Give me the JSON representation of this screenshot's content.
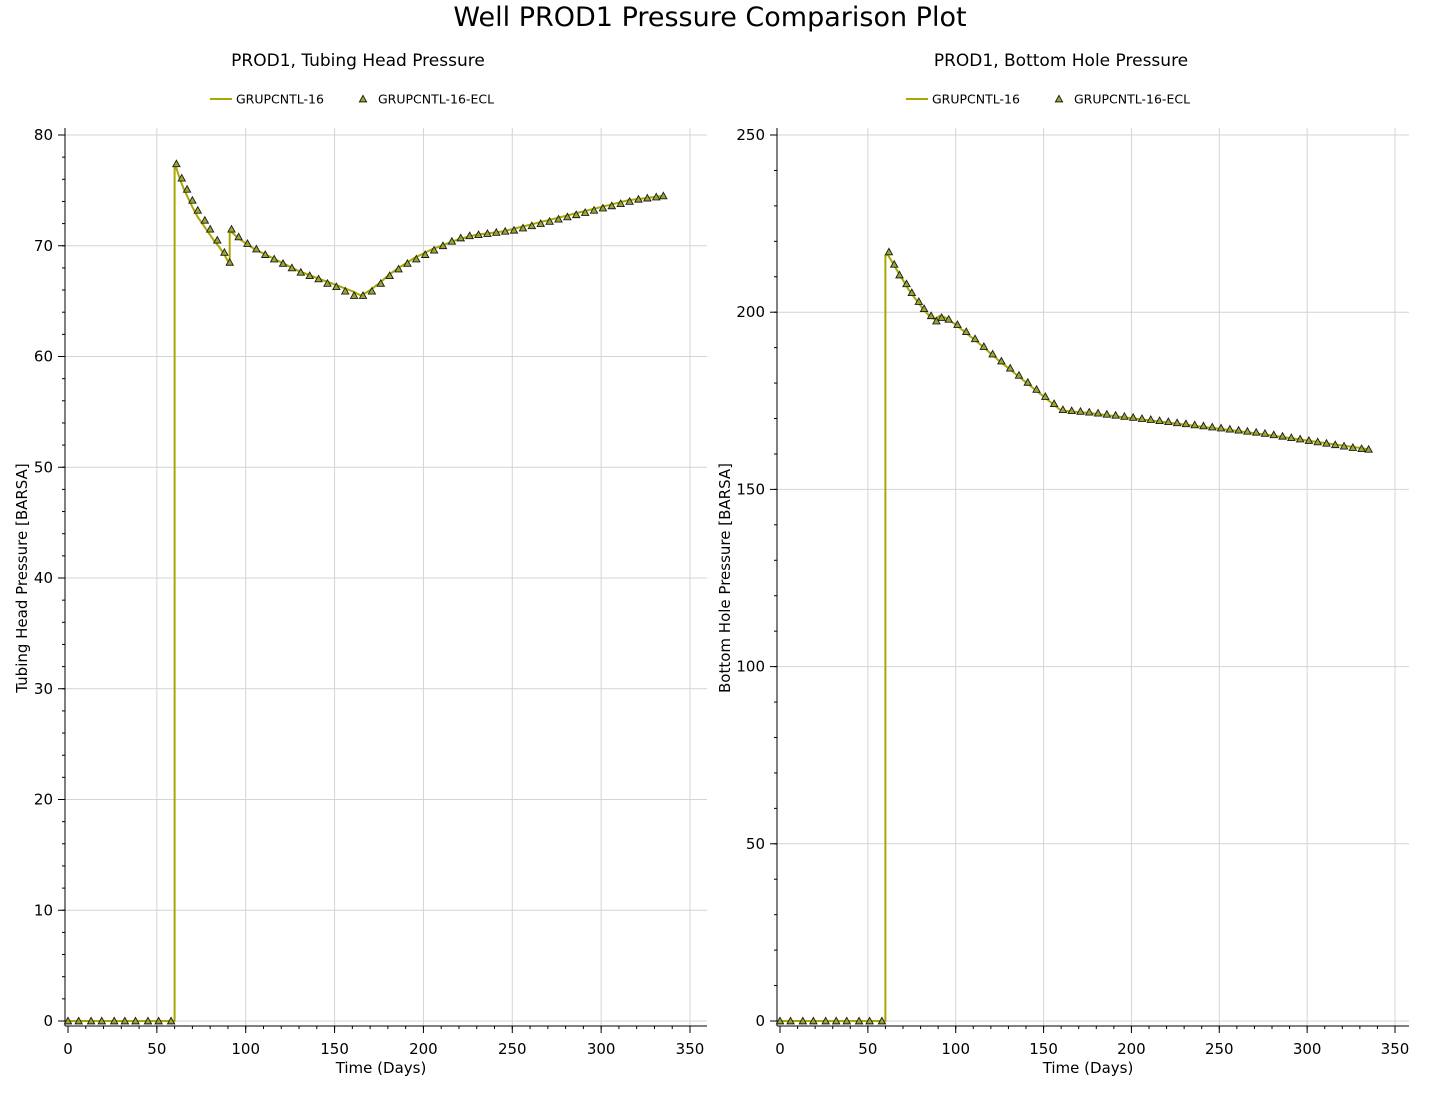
{
  "page": {
    "title": "Well PROD1 Pressure Comparison Plot"
  },
  "colors": {
    "line": "#a8a800",
    "marker_fill": "#9aa830",
    "marker_stroke": "#1a1a1a",
    "grid": "#d4d4d4"
  },
  "chart_data": [
    {
      "type": "line",
      "title": "PROD1, Tubing Head Pressure",
      "xlabel": "Time (Days)",
      "ylabel": "Tubing Head Pressure [BARSA]",
      "xlim": [
        0,
        350
      ],
      "ylim": [
        0,
        80
      ],
      "xticks": [
        0,
        50,
        100,
        150,
        200,
        250,
        300,
        350
      ],
      "yticks": [
        0,
        10,
        20,
        30,
        40,
        50,
        60,
        70,
        80
      ],
      "grid": true,
      "legend": "top-center",
      "series": [
        {
          "name": "GRUPCNTL-16",
          "style": "line",
          "x": [
            0,
            60,
            60,
            61,
            63,
            65,
            67,
            70,
            73,
            76,
            79,
            82,
            85,
            88,
            90,
            91,
            91,
            93,
            95,
            100,
            105,
            110,
            115,
            120,
            125,
            130,
            135,
            140,
            145,
            150,
            155,
            160,
            165,
            170,
            175,
            180,
            185,
            190,
            195,
            200,
            205,
            210,
            215,
            220,
            225,
            230,
            235,
            240,
            245,
            250,
            255,
            260,
            265,
            270,
            275,
            280,
            285,
            290,
            295,
            300,
            305,
            310,
            315,
            320,
            325,
            330,
            335
          ],
          "y": [
            0,
            0,
            77.3,
            77.0,
            76.0,
            75.2,
            74.5,
            73.5,
            72.6,
            71.9,
            71.2,
            70.5,
            69.9,
            69.2,
            68.6,
            68.5,
            71.4,
            71.1,
            70.8,
            70.2,
            69.7,
            69.3,
            68.9,
            68.5,
            68.1,
            67.7,
            67.4,
            67.1,
            66.8,
            66.5,
            66.2,
            65.9,
            65.5,
            66.0,
            66.6,
            67.3,
            67.9,
            68.4,
            68.9,
            69.3,
            69.7,
            70.0,
            70.3,
            70.6,
            70.8,
            71.0,
            71.1,
            71.2,
            71.3,
            71.5,
            71.7,
            71.9,
            72.1,
            72.3,
            72.5,
            72.7,
            72.9,
            73.1,
            73.3,
            73.5,
            73.7,
            73.9,
            74.1,
            74.2,
            74.3,
            74.4,
            74.5
          ]
        },
        {
          "name": "GRUPCNTL-16-ECL",
          "style": "marker",
          "x": [
            0,
            6,
            13,
            19,
            26,
            32,
            38,
            45,
            51,
            58,
            61,
            64,
            67,
            70,
            73,
            77,
            80,
            84,
            88,
            91,
            92,
            96,
            101,
            106,
            111,
            116,
            121,
            126,
            131,
            136,
            141,
            146,
            151,
            156,
            161,
            166,
            171,
            176,
            181,
            186,
            191,
            196,
            201,
            206,
            211,
            216,
            221,
            226,
            231,
            236,
            241,
            246,
            251,
            256,
            261,
            266,
            271,
            276,
            281,
            286,
            291,
            296,
            301,
            306,
            311,
            316,
            321,
            326,
            331,
            335
          ],
          "y": [
            0,
            0,
            0,
            0,
            0,
            0,
            0,
            0,
            0,
            0,
            77.4,
            76.1,
            75.1,
            74.1,
            73.2,
            72.3,
            71.5,
            70.5,
            69.4,
            68.5,
            71.5,
            70.8,
            70.2,
            69.7,
            69.2,
            68.8,
            68.4,
            68.0,
            67.6,
            67.3,
            67.0,
            66.6,
            66.3,
            65.9,
            65.5,
            65.5,
            65.9,
            66.6,
            67.3,
            67.9,
            68.4,
            68.8,
            69.2,
            69.6,
            70.0,
            70.4,
            70.7,
            70.9,
            71.0,
            71.1,
            71.2,
            71.3,
            71.4,
            71.6,
            71.8,
            72.0,
            72.2,
            72.4,
            72.6,
            72.8,
            73.0,
            73.2,
            73.4,
            73.6,
            73.8,
            74.0,
            74.2,
            74.3,
            74.4,
            74.5
          ]
        }
      ]
    },
    {
      "type": "line",
      "title": "PROD1, Bottom Hole Pressure",
      "xlabel": "Time (Days)",
      "ylabel": "Bottom Hole Pressure [BARSA]",
      "xlim": [
        0,
        350
      ],
      "ylim": [
        0,
        250
      ],
      "xticks": [
        0,
        50,
        100,
        150,
        200,
        250,
        300,
        350
      ],
      "yticks": [
        0,
        50,
        100,
        150,
        200,
        250
      ],
      "grid": true,
      "legend": "top-center",
      "series": [
        {
          "name": "GRUPCNTL-16",
          "style": "line",
          "x": [
            0,
            60,
            60,
            61,
            64,
            67,
            70,
            73,
            76,
            79,
            82,
            85,
            88,
            91,
            94,
            97,
            100,
            105,
            110,
            115,
            120,
            125,
            130,
            135,
            140,
            145,
            150,
            155,
            160,
            165,
            170,
            175,
            180,
            190,
            200,
            210,
            220,
            230,
            240,
            250,
            260,
            270,
            280,
            290,
            300,
            310,
            320,
            330,
            335
          ],
          "y": [
            0,
            0,
            216,
            216.5,
            214,
            211.5,
            209,
            206.5,
            204.5,
            202.5,
            200.5,
            199,
            198,
            199,
            198.5,
            197.5,
            196.5,
            194.5,
            192.5,
            190.5,
            188.3,
            186.2,
            184.2,
            182.2,
            180.2,
            178.2,
            176.2,
            174.2,
            172.3,
            172.0,
            171.8,
            171.6,
            171.3,
            170.7,
            170.1,
            169.5,
            168.9,
            168.3,
            167.7,
            167.1,
            166.5,
            165.9,
            165.2,
            164.5,
            163.8,
            163.1,
            162.4,
            161.7,
            161.3
          ]
        },
        {
          "name": "GRUPCNTL-16-ECL",
          "style": "marker",
          "x": [
            0,
            6,
            13,
            19,
            26,
            32,
            38,
            45,
            51,
            58,
            62,
            65,
            68,
            72,
            75,
            79,
            82,
            86,
            89,
            92,
            96,
            101,
            106,
            111,
            116,
            121,
            126,
            131,
            136,
            141,
            146,
            151,
            156,
            161,
            166,
            171,
            176,
            181,
            186,
            191,
            196,
            201,
            206,
            211,
            216,
            221,
            226,
            231,
            236,
            241,
            246,
            251,
            256,
            261,
            266,
            271,
            276,
            281,
            286,
            291,
            296,
            301,
            306,
            311,
            316,
            321,
            326,
            331,
            335
          ],
          "y": [
            0,
            0,
            0,
            0,
            0,
            0,
            0,
            0,
            0,
            0,
            217,
            213.5,
            210.5,
            208,
            205.5,
            203,
            201,
            199,
            197.5,
            198.5,
            198,
            196.5,
            194.5,
            192.5,
            190.3,
            188.2,
            186.2,
            184.2,
            182.2,
            180.2,
            178.2,
            176.2,
            174.2,
            172.5,
            172.2,
            172.0,
            171.8,
            171.5,
            171.2,
            170.9,
            170.6,
            170.3,
            170.0,
            169.7,
            169.4,
            169.1,
            168.8,
            168.5,
            168.2,
            167.9,
            167.6,
            167.3,
            167.0,
            166.7,
            166.4,
            166.1,
            165.8,
            165.4,
            165.0,
            164.6,
            164.2,
            163.8,
            163.4,
            163.0,
            162.6,
            162.2,
            161.8,
            161.5,
            161.3
          ]
        }
      ]
    }
  ]
}
